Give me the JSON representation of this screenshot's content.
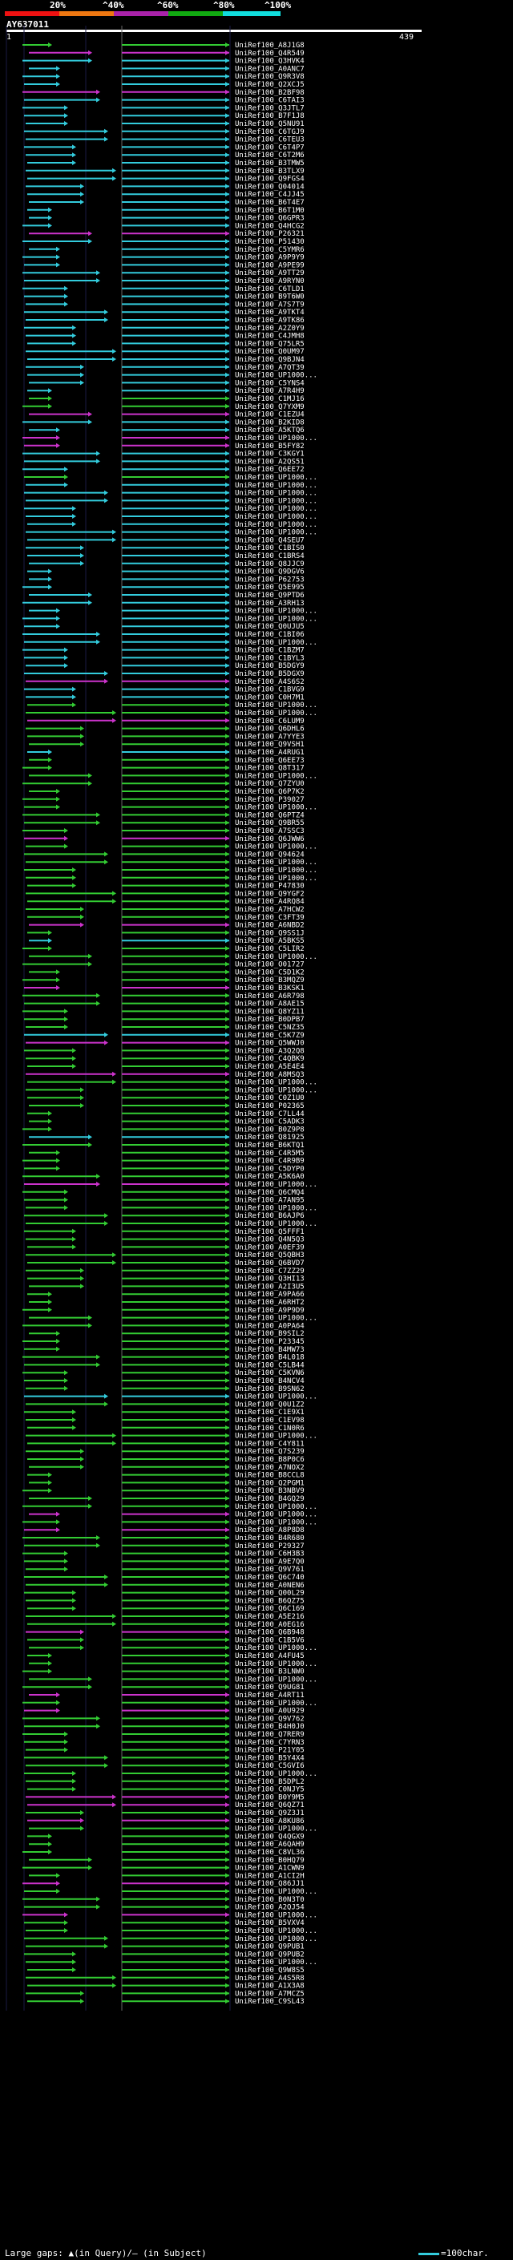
{
  "header": {
    "scale_labels": [
      "20%",
      "^40%",
      "^60%",
      "^80%",
      "^100%"
    ],
    "scale_colors": [
      "#ee1111",
      "#ee7711",
      "#aa22aa",
      "#11aa11",
      "#11dddd"
    ],
    "query_id": "AY637011",
    "start_pos": "1",
    "end_pos": "439"
  },
  "footer": {
    "gap_text": "Large gaps: ▲(in Query)/— (in Subject)",
    "scale_text": "=100char."
  },
  "colors": {
    "green": "#33cc33",
    "cyan": "#33ccdd",
    "magenta": "#cc33cc",
    "gap_green": "#119911",
    "grid": "#1a1a44",
    "ref_line": "#666666"
  },
  "hits": [
    {
      "id": "UniRef100_A8J1G8",
      "color": "green"
    },
    {
      "id": "UniRef100_Q4R549",
      "color": "magenta"
    },
    {
      "id": "UniRef100_Q3HVK4",
      "color": "cyan"
    },
    {
      "id": "UniRef100_A0ANC7",
      "color": "cyan"
    },
    {
      "id": "UniRef100_Q9R3V8",
      "color": "cyan"
    },
    {
      "id": "UniRef100_Q2XCJ5",
      "color": "cyan"
    },
    {
      "id": "UniRef100_B2BF98",
      "color": "magenta"
    },
    {
      "id": "UniRef100_C6TAI3",
      "color": "cyan"
    },
    {
      "id": "UniRef100_Q3JTL7",
      "color": "cyan"
    },
    {
      "id": "UniRef100_B7F1J8",
      "color": "cyan"
    },
    {
      "id": "UniRef100_Q5NU91",
      "color": "cyan"
    },
    {
      "id": "UniRef100_C6TGJ9",
      "color": "cyan"
    },
    {
      "id": "UniRef100_C6TEU3",
      "color": "cyan"
    },
    {
      "id": "UniRef100_C6T4P7",
      "color": "cyan"
    },
    {
      "id": "UniRef100_C6T2M6",
      "color": "cyan"
    },
    {
      "id": "UniRef100_B3TMW5",
      "color": "cyan"
    },
    {
      "id": "UniRef100_B3TLX9",
      "color": "cyan"
    },
    {
      "id": "UniRef100_Q9FGS4",
      "color": "cyan"
    },
    {
      "id": "UniRef100_Q04014",
      "color": "cyan"
    },
    {
      "id": "UniRef100_C4JJ45",
      "color": "cyan"
    },
    {
      "id": "UniRef100_B6T4E7",
      "color": "cyan"
    },
    {
      "id": "UniRef100_B6T1M0",
      "color": "cyan"
    },
    {
      "id": "UniRef100_Q6GPR3",
      "color": "cyan"
    },
    {
      "id": "UniRef100_Q4HCG2",
      "color": "cyan"
    },
    {
      "id": "UniRef100_P26321",
      "color": "magenta"
    },
    {
      "id": "UniRef100_P51430",
      "color": "cyan"
    },
    {
      "id": "UniRef100_C5YMR6",
      "color": "cyan"
    },
    {
      "id": "UniRef100_A9P9Y9",
      "color": "cyan"
    },
    {
      "id": "UniRef100_A9PE99",
      "color": "cyan"
    },
    {
      "id": "UniRef100_A9TT29",
      "color": "cyan"
    },
    {
      "id": "UniRef100_A9RYN0",
      "color": "cyan"
    },
    {
      "id": "UniRef100_C6TLD1",
      "color": "cyan"
    },
    {
      "id": "UniRef100_B9T6W0",
      "color": "cyan"
    },
    {
      "id": "UniRef100_A7S7T9",
      "color": "cyan"
    },
    {
      "id": "UniRef100_A9TKT4",
      "color": "cyan"
    },
    {
      "id": "UniRef100_A9TK86",
      "color": "cyan"
    },
    {
      "id": "UniRef100_A2Z0Y9",
      "color": "cyan"
    },
    {
      "id": "UniRef100_C4JMH8",
      "color": "cyan"
    },
    {
      "id": "UniRef100_Q75LR5",
      "color": "cyan"
    },
    {
      "id": "UniRef100_Q0UM97",
      "color": "cyan"
    },
    {
      "id": "UniRef100_Q9BJN4",
      "color": "cyan"
    },
    {
      "id": "UniRef100_A7QT39",
      "color": "cyan"
    },
    {
      "id": "UniRef100_UP1000...",
      "color": "cyan"
    },
    {
      "id": "UniRef100_C5YNS4",
      "color": "cyan"
    },
    {
      "id": "UniRef100_A7R4H9",
      "color": "cyan"
    },
    {
      "id": "UniRef100_C1MJ16",
      "color": "green"
    },
    {
      "id": "UniRef100_Q7YXM9",
      "color": "green"
    },
    {
      "id": "UniRef100_C1EZU4",
      "color": "magenta"
    },
    {
      "id": "UniRef100_B2KID8",
      "color": "cyan"
    },
    {
      "id": "UniRef100_A5KTQ6",
      "color": "cyan"
    },
    {
      "id": "UniRef100_UP1000...",
      "color": "magenta"
    },
    {
      "id": "UniRef100_B5FY82",
      "color": "magenta"
    },
    {
      "id": "UniRef100_C3KGY1",
      "color": "cyan"
    },
    {
      "id": "UniRef100_A2QS51",
      "color": "cyan"
    },
    {
      "id": "UniRef100_Q6EE72",
      "color": "cyan"
    },
    {
      "id": "UniRef100_UP1000...",
      "color": "green"
    },
    {
      "id": "UniRef100_UP1000...",
      "color": "cyan"
    },
    {
      "id": "UniRef100_UP1000...",
      "color": "cyan"
    },
    {
      "id": "UniRef100_UP1000...",
      "color": "cyan"
    },
    {
      "id": "UniRef100_UP1000...",
      "color": "cyan"
    },
    {
      "id": "UniRef100_UP1000...",
      "color": "cyan"
    },
    {
      "id": "UniRef100_UP1000...",
      "color": "cyan"
    },
    {
      "id": "UniRef100_UP1000...",
      "color": "cyan"
    },
    {
      "id": "UniRef100_Q4SEU7",
      "color": "cyan"
    },
    {
      "id": "UniRef100_C1BIS0",
      "color": "cyan"
    },
    {
      "id": "UniRef100_C1BRS4",
      "color": "cyan"
    },
    {
      "id": "UniRef100_Q8JJC9",
      "color": "cyan"
    },
    {
      "id": "UniRef100_Q9DGV6",
      "color": "cyan"
    },
    {
      "id": "UniRef100_P62753",
      "color": "cyan"
    },
    {
      "id": "UniRef100_Q5E995",
      "color": "cyan"
    },
    {
      "id": "UniRef100_Q9PTD6",
      "color": "cyan"
    },
    {
      "id": "UniRef100_A3RH13",
      "color": "cyan"
    },
    {
      "id": "UniRef100_UP1000...",
      "color": "cyan"
    },
    {
      "id": "UniRef100_UP1000...",
      "color": "cyan"
    },
    {
      "id": "UniRef100_Q0UJU5",
      "color": "cyan"
    },
    {
      "id": "UniRef100_C1BI06",
      "color": "cyan"
    },
    {
      "id": "UniRef100_UP1000...",
      "color": "cyan"
    },
    {
      "id": "UniRef100_C1BZM7",
      "color": "cyan"
    },
    {
      "id": "UniRef100_C1BYL3",
      "color": "cyan"
    },
    {
      "id": "UniRef100_B5DGY9",
      "color": "cyan"
    },
    {
      "id": "UniRef100_B5DGX9",
      "color": "cyan"
    },
    {
      "id": "UniRef100_A4S6S2",
      "color": "magenta"
    },
    {
      "id": "UniRef100_C1BVG9",
      "color": "cyan"
    },
    {
      "id": "UniRef100_C0H7M1",
      "color": "cyan"
    },
    {
      "id": "UniRef100_UP1000...",
      "color": "green"
    },
    {
      "id": "UniRef100_UP1000...",
      "color": "green"
    },
    {
      "id": "UniRef100_C6LUM9",
      "color": "magenta"
    },
    {
      "id": "UniRef100_Q6DHL6",
      "color": "green"
    },
    {
      "id": "UniRef100_A7YYE3",
      "color": "green"
    },
    {
      "id": "UniRef100_Q9VSH1",
      "color": "green"
    },
    {
      "id": "UniRef100_A4RUG1",
      "color": "cyan"
    },
    {
      "id": "UniRef100_Q6EE73",
      "color": "green"
    },
    {
      "id": "UniRef100_Q8T317",
      "color": "green"
    },
    {
      "id": "UniRef100_UP1000...",
      "color": "green"
    },
    {
      "id": "UniRef100_Q7ZYU0",
      "color": "green"
    },
    {
      "id": "UniRef100_Q6P7K2",
      "color": "green"
    },
    {
      "id": "UniRef100_P39027",
      "color": "green"
    },
    {
      "id": "UniRef100_UP1000...",
      "color": "green"
    },
    {
      "id": "UniRef100_Q6PTZ4",
      "color": "green"
    },
    {
      "id": "UniRef100_Q9BR55",
      "color": "green"
    },
    {
      "id": "UniRef100_A7SSC3",
      "color": "green"
    },
    {
      "id": "UniRef100_Q6JWW6",
      "color": "magenta"
    },
    {
      "id": "UniRef100_UP1000...",
      "color": "green"
    },
    {
      "id": "UniRef100_Q94624",
      "color": "green"
    },
    {
      "id": "UniRef100_UP1000...",
      "color": "green"
    },
    {
      "id": "UniRef100_UP1000...",
      "color": "green"
    },
    {
      "id": "UniRef100_UP1000...",
      "color": "green"
    },
    {
      "id": "UniRef100_P47830",
      "color": "green"
    },
    {
      "id": "UniRef100_Q9YGF2",
      "color": "green"
    },
    {
      "id": "UniRef100_A4RQ84",
      "color": "green"
    },
    {
      "id": "UniRef100_A7HCW2",
      "color": "green"
    },
    {
      "id": "UniRef100_C3FT39",
      "color": "green"
    },
    {
      "id": "UniRef100_A6NBD2",
      "color": "magenta"
    },
    {
      "id": "UniRef100_Q9SS1J",
      "color": "green"
    },
    {
      "id": "UniRef100_A5BKS5",
      "color": "cyan"
    },
    {
      "id": "UniRef100_C5LIR2",
      "color": "green"
    },
    {
      "id": "UniRef100_UP1000...",
      "color": "green"
    },
    {
      "id": "UniRef100_O01727",
      "color": "green"
    },
    {
      "id": "UniRef100_C5D1K2",
      "color": "green"
    },
    {
      "id": "UniRef100_B3MQZ9",
      "color": "green"
    },
    {
      "id": "UniRef100_B3KSK1",
      "color": "magenta"
    },
    {
      "id": "UniRef100_A6R798",
      "color": "green"
    },
    {
      "id": "UniRef100_A8AE15",
      "color": "green"
    },
    {
      "id": "UniRef100_Q8YZ11",
      "color": "green"
    },
    {
      "id": "UniRef100_B0DPB7",
      "color": "green"
    },
    {
      "id": "UniRef100_C5NZ35",
      "color": "green"
    },
    {
      "id": "UniRef100_C5K7Z9",
      "color": "cyan"
    },
    {
      "id": "UniRef100_Q5WWJ0",
      "color": "magenta"
    },
    {
      "id": "UniRef100_A3Q2Q8",
      "color": "green"
    },
    {
      "id": "UniRef100_C4QBK9",
      "color": "green"
    },
    {
      "id": "UniRef100_A5E4E4",
      "color": "green"
    },
    {
      "id": "UniRef100_A8MSQ3",
      "color": "magenta"
    },
    {
      "id": "UniRef100_UP1000...",
      "color": "green"
    },
    {
      "id": "UniRef100_UP1000...",
      "color": "green"
    },
    {
      "id": "UniRef100_C0Z1U0",
      "color": "green"
    },
    {
      "id": "UniRef100_P02365",
      "color": "green"
    },
    {
      "id": "UniRef100_C7LL44",
      "color": "green"
    },
    {
      "id": "UniRef100_C5ADK3",
      "color": "green"
    },
    {
      "id": "UniRef100_B0Z9P8",
      "color": "green"
    },
    {
      "id": "UniRef100_Q81925",
      "color": "cyan"
    },
    {
      "id": "UniRef100_B6KTQ1",
      "color": "green"
    },
    {
      "id": "UniRef100_C4R5M5",
      "color": "green"
    },
    {
      "id": "UniRef100_C4R9B9",
      "color": "green"
    },
    {
      "id": "UniRef100_C5DYP0",
      "color": "green"
    },
    {
      "id": "UniRef100_A5K6A0",
      "color": "green"
    },
    {
      "id": "UniRef100_UP1000...",
      "color": "magenta"
    },
    {
      "id": "UniRef100_Q6CMQ4",
      "color": "green"
    },
    {
      "id": "UniRef100_A7AN95",
      "color": "green"
    },
    {
      "id": "UniRef100_UP1000...",
      "color": "green"
    },
    {
      "id": "UniRef100_B6AJP6",
      "color": "green"
    },
    {
      "id": "UniRef100_UP1000...",
      "color": "green"
    },
    {
      "id": "UniRef100_Q5FFF1",
      "color": "green"
    },
    {
      "id": "UniRef100_Q4N5Q3",
      "color": "green"
    },
    {
      "id": "UniRef100_A0EF39",
      "color": "green"
    },
    {
      "id": "UniRef100_Q5QBH3",
      "color": "green"
    },
    {
      "id": "UniRef100_Q6BVD7",
      "color": "green"
    },
    {
      "id": "UniRef100_C7ZZ29",
      "color": "green"
    },
    {
      "id": "UniRef100_Q3HI13",
      "color": "green"
    },
    {
      "id": "UniRef100_A2I3U5",
      "color": "green"
    },
    {
      "id": "UniRef100_A9PA66",
      "color": "green"
    },
    {
      "id": "UniRef100_A6RHT2",
      "color": "green"
    },
    {
      "id": "UniRef100_A9P9D9",
      "color": "green"
    },
    {
      "id": "UniRef100_UP1000...",
      "color": "green"
    },
    {
      "id": "UniRef100_A0PA64",
      "color": "green"
    },
    {
      "id": "UniRef100_B9SIL2",
      "color": "green"
    },
    {
      "id": "UniRef100_P23345",
      "color": "green"
    },
    {
      "id": "UniRef100_B4MW73",
      "color": "green"
    },
    {
      "id": "UniRef100_B4L018",
      "color": "green"
    },
    {
      "id": "UniRef100_C5LB44",
      "color": "green"
    },
    {
      "id": "UniRef100_C5KVN6",
      "color": "green"
    },
    {
      "id": "UniRef100_B4NCV4",
      "color": "green"
    },
    {
      "id": "UniRef100_B9SN62",
      "color": "green"
    },
    {
      "id": "UniRef100_UP1000...",
      "color": "cyan"
    },
    {
      "id": "UniRef100_Q0U1Z2",
      "color": "green"
    },
    {
      "id": "UniRef100_C1E9X1",
      "color": "green"
    },
    {
      "id": "UniRef100_C1EV98",
      "color": "green"
    },
    {
      "id": "UniRef100_C1N0R6",
      "color": "green"
    },
    {
      "id": "UniRef100_UP1000...",
      "color": "green"
    },
    {
      "id": "UniRef100_C4Y811",
      "color": "green"
    },
    {
      "id": "UniRef100_Q7S239",
      "color": "green"
    },
    {
      "id": "UniRef100_B8P0C6",
      "color": "green"
    },
    {
      "id": "UniRef100_A7NOX2",
      "color": "green"
    },
    {
      "id": "UniRef100_B8CCL8",
      "color": "green"
    },
    {
      "id": "UniRef100_Q2PGM1",
      "color": "green"
    },
    {
      "id": "UniRef100_B3NBV9",
      "color": "green"
    },
    {
      "id": "UniRef100_B4GQ29",
      "color": "green"
    },
    {
      "id": "UniRef100_UP1000...",
      "color": "green"
    },
    {
      "id": "UniRef100_UP1000...",
      "color": "magenta"
    },
    {
      "id": "UniRef100_UP1000...",
      "color": "green"
    },
    {
      "id": "UniRef100_A8P8D8",
      "color": "magenta"
    },
    {
      "id": "UniRef100_B4R680",
      "color": "green"
    },
    {
      "id": "UniRef100_P29327",
      "color": "green"
    },
    {
      "id": "UniRef100_C6H3B3",
      "color": "green"
    },
    {
      "id": "UniRef100_A9E7Q0",
      "color": "green"
    },
    {
      "id": "UniRef100_Q9V761",
      "color": "green"
    },
    {
      "id": "UniRef100_Q6C740",
      "color": "green"
    },
    {
      "id": "UniRef100_A0NEN6",
      "color": "green"
    },
    {
      "id": "UniRef100_Q00L29",
      "color": "green"
    },
    {
      "id": "UniRef100_B6QZ75",
      "color": "green"
    },
    {
      "id": "UniRef100_Q6C169",
      "color": "green"
    },
    {
      "id": "UniRef100_A5E216",
      "color": "green"
    },
    {
      "id": "UniRef100_A0EG16",
      "color": "green"
    },
    {
      "id": "UniRef100_Q6B948",
      "color": "magenta"
    },
    {
      "id": "UniRef100_C1B5V6",
      "color": "green"
    },
    {
      "id": "UniRef100_UP1000...",
      "color": "green"
    },
    {
      "id": "UniRef100_A4FU45",
      "color": "green"
    },
    {
      "id": "UniRef100_UP1000...",
      "color": "green"
    },
    {
      "id": "UniRef100_B3LNW0",
      "color": "green"
    },
    {
      "id": "UniRef100_UP1000...",
      "color": "green"
    },
    {
      "id": "UniRef100_Q9UG81",
      "color": "green"
    },
    {
      "id": "UniRef100_A4RT11",
      "color": "magenta"
    },
    {
      "id": "UniRef100_UP1000...",
      "color": "green"
    },
    {
      "id": "UniRef100_A0U929",
      "color": "magenta"
    },
    {
      "id": "UniRef100_Q9V762",
      "color": "green"
    },
    {
      "id": "UniRef100_B4H0J0",
      "color": "green"
    },
    {
      "id": "UniRef100_Q7RER9",
      "color": "green"
    },
    {
      "id": "UniRef100_C7YRN3",
      "color": "green"
    },
    {
      "id": "UniRef100_P21Y05",
      "color": "green"
    },
    {
      "id": "UniRef100_B5Y4X4",
      "color": "green"
    },
    {
      "id": "UniRef100_C5GVI6",
      "color": "green"
    },
    {
      "id": "UniRef100_UP1000...",
      "color": "green"
    },
    {
      "id": "UniRef100_B5DPL2",
      "color": "green"
    },
    {
      "id": "UniRef100_C0NJY5",
      "color": "green"
    },
    {
      "id": "UniRef100_B0Y9M5",
      "color": "magenta"
    },
    {
      "id": "UniRef100_Q6QZ71",
      "color": "magenta"
    },
    {
      "id": "UniRef100_Q9Z3J1",
      "color": "green"
    },
    {
      "id": "UniRef100_A8KU86",
      "color": "magenta"
    },
    {
      "id": "UniRef100_UP1000...",
      "color": "green"
    },
    {
      "id": "UniRef100_Q4QGX9",
      "color": "green"
    },
    {
      "id": "UniRef100_A6QAH9",
      "color": "green"
    },
    {
      "id": "UniRef100_C8VL36",
      "color": "green"
    },
    {
      "id": "UniRef100_B0HQ79",
      "color": "green"
    },
    {
      "id": "UniRef100_A1CWN9",
      "color": "green"
    },
    {
      "id": "UniRef100_A1CI2H",
      "color": "green"
    },
    {
      "id": "UniRef100_Q86JJ1",
      "color": "magenta"
    },
    {
      "id": "UniRef100_UP1000...",
      "color": "green"
    },
    {
      "id": "UniRef100_B0N3T0",
      "color": "green"
    },
    {
      "id": "UniRef100_A2QJ54",
      "color": "green"
    },
    {
      "id": "UniRef100_UP1000...",
      "color": "magenta"
    },
    {
      "id": "UniRef100_B5VXV4",
      "color": "green"
    },
    {
      "id": "UniRef100_UP1000...",
      "color": "green"
    },
    {
      "id": "UniRef100_UP1000...",
      "color": "green"
    },
    {
      "id": "UniRef100_Q9PUB1",
      "color": "green"
    },
    {
      "id": "UniRef100_Q9PUB2",
      "color": "green"
    },
    {
      "id": "UniRef100_UP1000...",
      "color": "green"
    },
    {
      "id": "UniRef100_Q9W8S5",
      "color": "green"
    },
    {
      "id": "UniRef100_A4S5R8",
      "color": "green"
    },
    {
      "id": "UniRef100_A1X3A8",
      "color": "green"
    },
    {
      "id": "UniRef100_A7MCZ5",
      "color": "green"
    },
    {
      "id": "UniRef100_C9SL43",
      "color": "green"
    }
  ]
}
